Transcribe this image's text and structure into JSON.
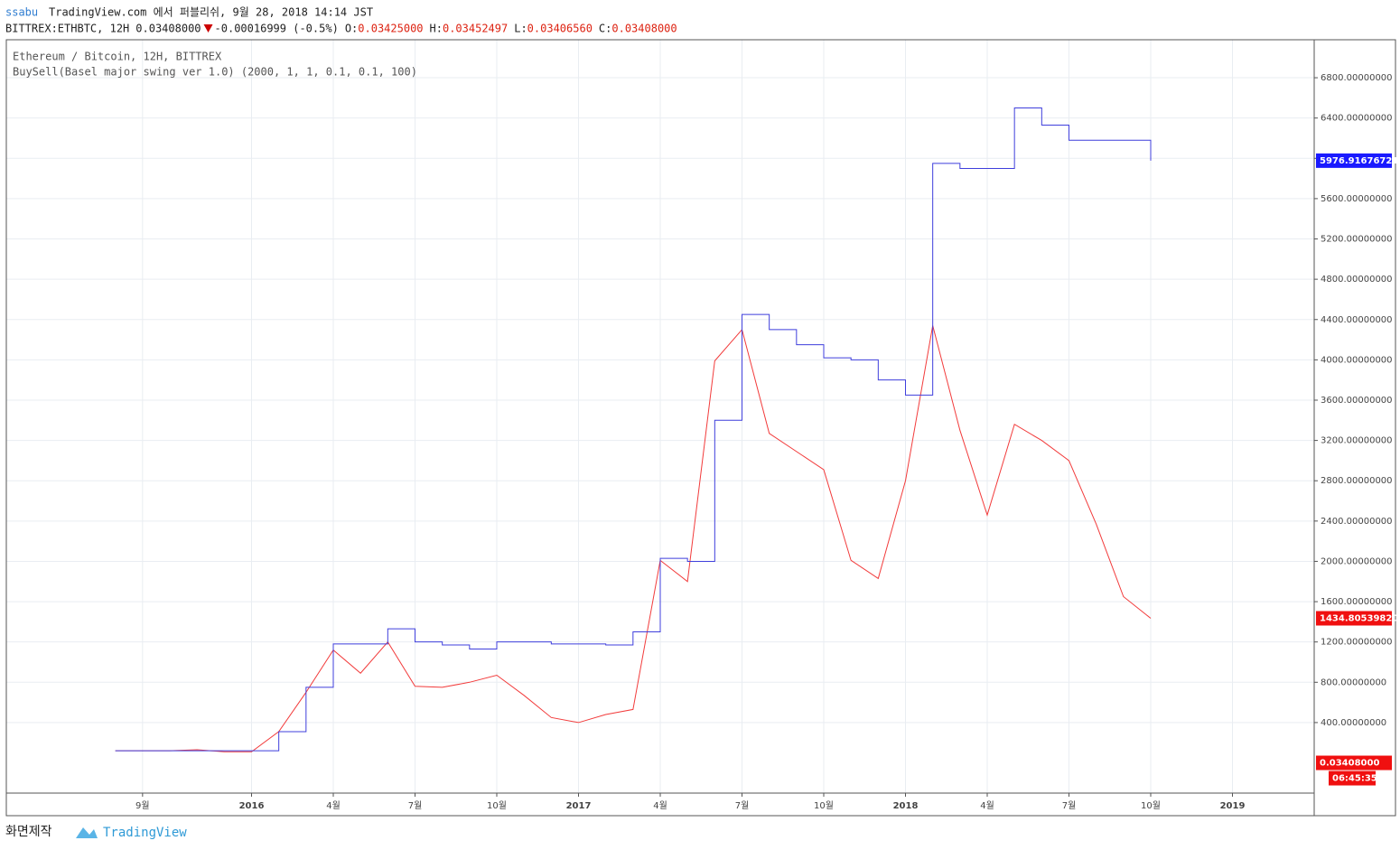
{
  "header": {
    "user": "ssabu",
    "published": "TradingView.com 에서 퍼블리쉬, 9월 28, 2018 14:14 JST",
    "symbol": "BITTREX:ETHBTC, 12H",
    "last": "0.03408000",
    "change": "-0.00016999 (-0.5%)",
    "ohlc": [
      {
        "key": "O:",
        "val": "0.03425000"
      },
      {
        "key": "H:",
        "val": "0.03452497"
      },
      {
        "key": "L:",
        "val": "0.03406560"
      },
      {
        "key": "C:",
        "val": "0.03408000"
      }
    ]
  },
  "chart_data": {
    "type": "line",
    "grid": true,
    "xlim": [
      "2015-04",
      "2019-04"
    ],
    "xticks": [
      {
        "value": "2015-09",
        "label": "9월"
      },
      {
        "value": "2016-01",
        "label": "2016"
      },
      {
        "value": "2016-04",
        "label": "4월"
      },
      {
        "value": "2016-07",
        "label": "7월"
      },
      {
        "value": "2016-10",
        "label": "10월"
      },
      {
        "value": "2017-01",
        "label": "2017"
      },
      {
        "value": "2017-04",
        "label": "4월"
      },
      {
        "value": "2017-07",
        "label": "7월"
      },
      {
        "value": "2017-10",
        "label": "10월"
      },
      {
        "value": "2018-01",
        "label": "2018"
      },
      {
        "value": "2018-04",
        "label": "4월"
      },
      {
        "value": "2018-07",
        "label": "7월"
      },
      {
        "value": "2018-10",
        "label": "10월"
      },
      {
        "value": "2019-01",
        "label": "2019"
      }
    ],
    "ylim": [
      -300,
      7177
    ],
    "yticks": [
      {
        "value": 400,
        "label": "400.00000000"
      },
      {
        "value": 800,
        "label": "800.00000000"
      },
      {
        "value": 1200,
        "label": "1200.00000000"
      },
      {
        "value": 1600,
        "label": "1600.00000000"
      },
      {
        "value": 2000,
        "label": "2000.00000000"
      },
      {
        "value": 2400,
        "label": "2400.00000000"
      },
      {
        "value": 2800,
        "label": "2800.00000000"
      },
      {
        "value": 3200,
        "label": "3200.00000000"
      },
      {
        "value": 3600,
        "label": "3600.00000000"
      },
      {
        "value": 4000,
        "label": "4000.00000000"
      },
      {
        "value": 4400,
        "label": "4400.00000000"
      },
      {
        "value": 4800,
        "label": "4800.00000000"
      },
      {
        "value": 5200,
        "label": "5200.00000000"
      },
      {
        "value": 5600,
        "label": "5600.00000000"
      },
      {
        "value": 6000,
        "label": "6000.00000000"
      },
      {
        "value": 6400,
        "label": "6400.00000000"
      },
      {
        "value": 6800,
        "label": "6800.00000000"
      }
    ],
    "x": [
      "2015-08",
      "2015-09",
      "2015-10",
      "2015-11",
      "2015-12",
      "2016-01",
      "2016-02",
      "2016-03",
      "2016-04",
      "2016-05",
      "2016-06",
      "2016-07",
      "2016-08",
      "2016-09",
      "2016-10",
      "2016-11",
      "2016-12",
      "2017-01",
      "2017-02",
      "2017-03",
      "2017-04",
      "2017-05",
      "2017-06",
      "2017-07",
      "2017-08",
      "2017-09",
      "2017-10",
      "2017-11",
      "2017-12",
      "2018-01",
      "2018-02",
      "2018-03",
      "2018-04",
      "2018-05",
      "2018-06",
      "2018-07",
      "2018-08",
      "2018-09",
      "2018-10"
    ],
    "series": [
      {
        "name": "Ethereum / Bitcoin, 12H, BITTREX",
        "color": "#f23b3b",
        "values": [
          120,
          120,
          120,
          130,
          110,
          110,
          310,
          700,
          1120,
          890,
          1200,
          760,
          750,
          800,
          870,
          670,
          450,
          400,
          480,
          530,
          2010,
          1800,
          3990,
          4300,
          3270,
          3090,
          2910,
          2010,
          1830,
          2800,
          4340,
          3300,
          2460,
          3360,
          3200,
          3000,
          2370,
          1650,
          1434.8053982
        ],
        "value_labels": [
          null,
          null,
          null,
          null,
          null,
          null,
          null,
          null,
          null,
          null,
          null,
          null,
          null,
          null,
          null,
          null,
          null,
          null,
          null,
          null,
          null,
          null,
          null,
          null,
          null,
          null,
          null,
          null,
          null,
          null,
          null,
          null,
          null,
          null,
          null,
          null,
          null,
          null,
          "1434.80539820"
        ]
      },
      {
        "name": "BuySell(Basel major swing ver 1.0) (2000, 1, 1, 0.1, 0.1, 100)",
        "color": "#3f3fdc",
        "line_style": "step",
        "values": [
          120,
          120,
          120,
          120,
          120,
          120,
          310,
          750,
          1180,
          1180,
          1330,
          1200,
          1170,
          1130,
          1200,
          1200,
          1180,
          1180,
          1170,
          1300,
          2030,
          2000,
          3400,
          4450,
          4300,
          4150,
          4020,
          4000,
          3800,
          3650,
          5950,
          5900,
          5900,
          6500,
          6330,
          6180,
          6180,
          6180,
          5976.91676721
        ],
        "value_labels": [
          null,
          null,
          null,
          null,
          null,
          null,
          null,
          null,
          null,
          null,
          null,
          null,
          null,
          null,
          null,
          null,
          null,
          null,
          null,
          null,
          null,
          null,
          null,
          null,
          null,
          null,
          null,
          null,
          null,
          null,
          null,
          null,
          null,
          null,
          null,
          null,
          null,
          null,
          "5976.91676721"
        ]
      }
    ],
    "price_label": {
      "value": 0.03408,
      "label": "0.03408000"
    },
    "countdown": "06:45:35"
  },
  "footer": {
    "caption": "화면제작",
    "brand": "TradingView"
  }
}
